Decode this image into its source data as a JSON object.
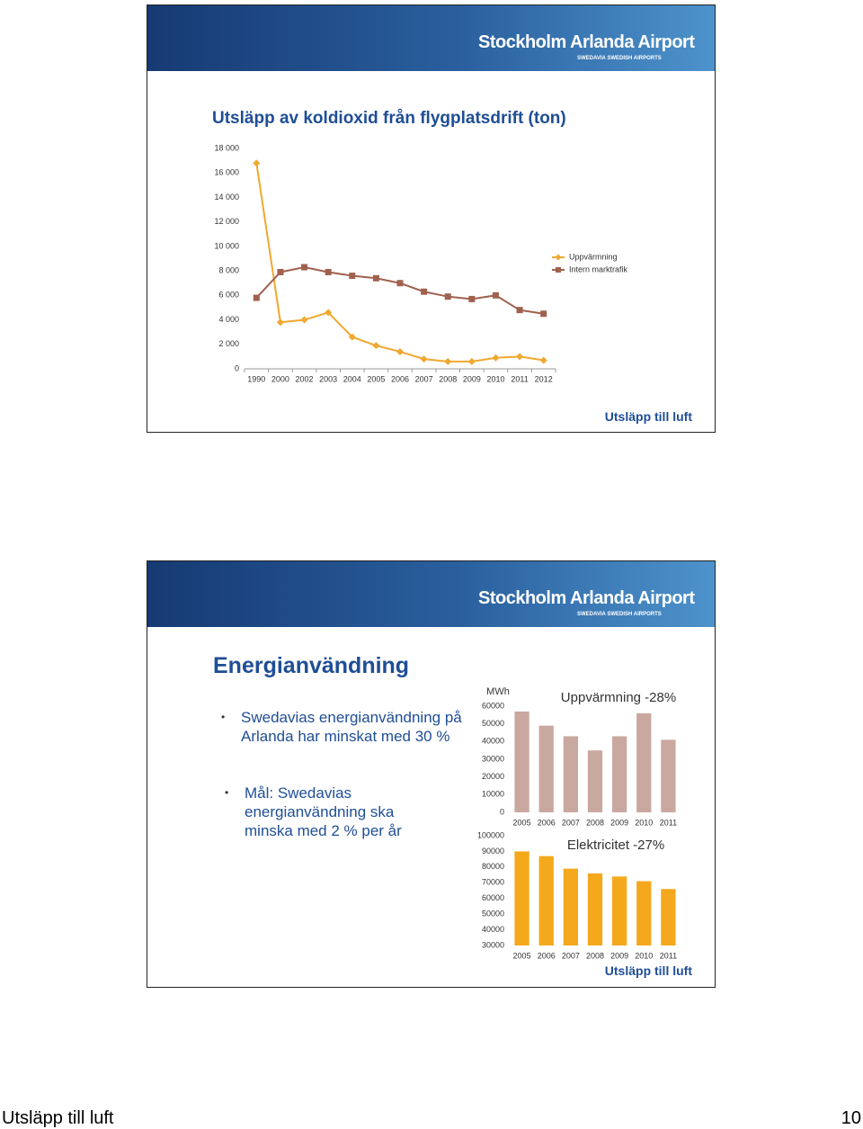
{
  "slides": [
    {
      "logo": "Stockholm Arlanda Airport",
      "logo_sub": "SWEDAVIA SWEDISH AIRPORTS",
      "title": "Utsläpp av koldioxid från flygplatsdrift (ton)",
      "footer": "Utsläpp till luft"
    },
    {
      "logo": "Stockholm Arlanda Airport",
      "logo_sub": "SWEDAVIA SWEDISH AIRPORTS",
      "title": "Energianvändning",
      "bullets": [
        "Swedavias energianvändning på Arlanda har minskat med 30 %",
        "Mål: Swedavias energianvändning ska minska med 2 % per år"
      ],
      "footer": "Utsläpp till luft"
    }
  ],
  "chart_data": [
    {
      "type": "line",
      "categories": [
        "1990",
        "2000",
        "2002",
        "2003",
        "2004",
        "2005",
        "2006",
        "2007",
        "2008",
        "2009",
        "2010",
        "2011",
        "2012"
      ],
      "series": [
        {
          "name": "Uppvärmning",
          "color": "#f0a830",
          "marker": "diamond",
          "values": [
            16800,
            3800,
            4000,
            4600,
            2600,
            1900,
            1400,
            800,
            600,
            600,
            900,
            1000,
            700
          ]
        },
        {
          "name": "Intern marktrafik",
          "color": "#a0614f",
          "marker": "square",
          "values": [
            5800,
            7900,
            8300,
            7900,
            7600,
            7400,
            7000,
            6300,
            5900,
            5700,
            6000,
            4800,
            4500
          ]
        }
      ],
      "ylim": [
        0,
        18000
      ],
      "yticks": [
        0,
        {
          "value": 2000,
          "label": "2 000"
        },
        {
          "value": 4000,
          "label": "4 000"
        },
        {
          "value": 6000,
          "label": "6 000"
        },
        {
          "value": 8000,
          "label": "8 000"
        },
        {
          "value": 10000,
          "label": "10 000"
        },
        {
          "value": 12000,
          "label": "12 000"
        },
        {
          "value": 14000,
          "label": "14 000"
        },
        {
          "value": 16000,
          "label": "16 000"
        },
        {
          "value": 18000,
          "label": "18 000"
        }
      ],
      "legend": "right",
      "grid": false
    },
    {
      "type": "bar",
      "title": "Uppvärmning -28%",
      "y_label": "MWh",
      "categories": [
        "2005",
        "2006",
        "2007",
        "2008",
        "2009",
        "2010",
        "2011"
      ],
      "values": [
        57000,
        49000,
        43000,
        35000,
        43000,
        56000,
        41000
      ],
      "color": "#c9a8a0",
      "ylim": [
        0,
        60000
      ],
      "yticks": [
        0,
        10000,
        20000,
        30000,
        40000,
        50000,
        60000
      ],
      "grid": false
    },
    {
      "type": "bar",
      "title": "Elektricitet -27%",
      "categories": [
        "2005",
        "2006",
        "2007",
        "2008",
        "2009",
        "2010",
        "2011"
      ],
      "values": [
        90000,
        87000,
        79000,
        76000,
        74000,
        71000,
        66000
      ],
      "color": "#f4a81c",
      "ylim": [
        30000,
        100000
      ],
      "yticks": [
        30000,
        40000,
        50000,
        60000,
        70000,
        80000,
        90000,
        100000
      ],
      "grid": false
    }
  ],
  "page_footer": {
    "title": "Utsläpp till luft",
    "page": 10
  }
}
